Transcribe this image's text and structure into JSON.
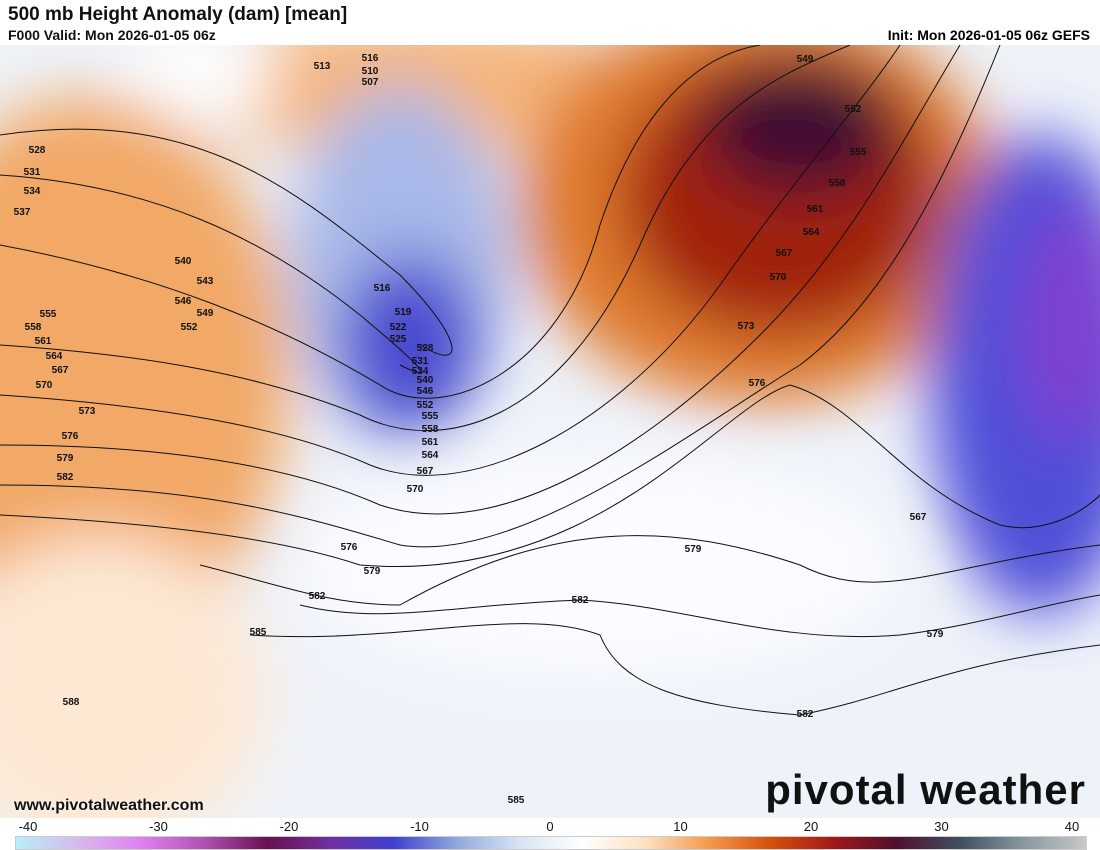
{
  "header": {
    "title": "500 mb Height Anomaly (dam) [mean]",
    "valid": "F000 Valid: Mon 2026-01-05 06z",
    "init": "Init: Mon 2026-01-05 06z GEFS"
  },
  "footer": {
    "website": "www.pivotalweather.com",
    "logo": "pivotal weather"
  },
  "colorbar": {
    "ticks": [
      "-40",
      "-30",
      "-20",
      "-10",
      "0",
      "10",
      "20",
      "30",
      "40"
    ],
    "range": [
      -40,
      40
    ],
    "colors": [
      "#b4f0f8",
      "#d8b8ec",
      "#e080f0",
      "#b050b0",
      "#6a1050",
      "#7030a0",
      "#4040d0",
      "#90a8dc",
      "#d8e4f4",
      "#ffffff",
      "#fde0c0",
      "#f59a4c",
      "#d4500a",
      "#a01818",
      "#501030",
      "#405060",
      "#8898a0",
      "#c8c8c8"
    ]
  },
  "contour_labels": [
    "513",
    "516",
    "510",
    "507",
    "549",
    "552",
    "555",
    "558",
    "561",
    "564",
    "567",
    "570",
    "573",
    "576",
    "528",
    "531",
    "534",
    "537",
    "540",
    "543",
    "546",
    "549",
    "552",
    "555",
    "558",
    "561",
    "564",
    "567",
    "570",
    "573",
    "576",
    "579",
    "582",
    "516",
    "519",
    "522",
    "525",
    "528",
    "531",
    "534",
    "540",
    "546",
    "552",
    "555",
    "558",
    "561",
    "564",
    "567",
    "570",
    "576",
    "579",
    "582",
    "585",
    "588",
    "582",
    "579",
    "582",
    "567",
    "579",
    "585"
  ]
}
